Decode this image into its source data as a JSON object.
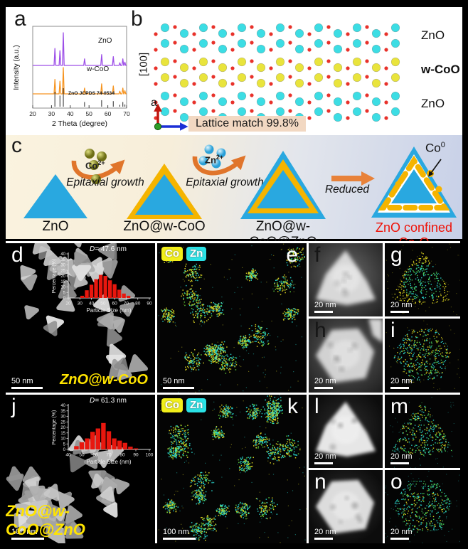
{
  "panels": {
    "a": {
      "letter": "a"
    },
    "b": {
      "letter": "b"
    },
    "c": {
      "letter": "c"
    },
    "d": {
      "letter": "d",
      "scale_bar": "50 nm",
      "sample_label": "ZnO@w-CoO"
    },
    "e": {
      "letter": "e",
      "scale_bar": "50 nm"
    },
    "f": {
      "letter": "f",
      "scale_bar": "20 nm"
    },
    "g": {
      "letter": "g",
      "scale_bar": "20 nm"
    },
    "h": {
      "letter": "h",
      "scale_bar": "20 nm"
    },
    "i": {
      "letter": "i",
      "scale_bar": "20 nm"
    },
    "j": {
      "letter": "j",
      "scale_bar": "100 nm",
      "sample_label": "ZnO@w-CoO@ZnO"
    },
    "k": {
      "letter": "k",
      "scale_bar": "100 nm"
    },
    "l": {
      "letter": "l",
      "scale_bar": "20 nm"
    },
    "m": {
      "letter": "m",
      "scale_bar": "20 nm"
    },
    "n": {
      "letter": "n",
      "scale_bar": "20 nm"
    },
    "o": {
      "letter": "o",
      "scale_bar": "20 nm"
    }
  },
  "eds_legend": {
    "co_label": "Co",
    "zn_label": "Zn",
    "co_color": "#f2ef1a",
    "zn_color": "#2ae2e6"
  },
  "panel_b": {
    "direction_label": "[100]",
    "axis_a": "a",
    "axis_c": "c",
    "layers": [
      "ZnO",
      "w-CoO",
      "ZnO"
    ],
    "caption": "Lattice match 99.8%",
    "atom_colors": {
      "zn": "#3cdde4",
      "co": "#e9e43c",
      "o": "#e8312a"
    }
  },
  "panel_c": {
    "steps": [
      {
        "label": "ZnO"
      },
      {
        "label": "ZnO@w-CoO"
      },
      {
        "label": "ZnO@w-CoO@ZnO"
      },
      {
        "label_prefix": "ZnO confined Co",
        "label_sub": "x",
        "label_suffix": "O"
      }
    ],
    "step1_arrow": {
      "ion": "Co",
      "ion_charge": "2+",
      "caption": "Epitaxial growth"
    },
    "step2_arrow": {
      "ion": "Zn",
      "ion_charge": "2+",
      "caption": "Epitaxial growth"
    },
    "step3_arrow": {
      "caption": "Reduced"
    },
    "co0": {
      "base": "Co",
      "sup": "0"
    },
    "colors": {
      "zno_blue": "#29a8e0",
      "coo_yellow": "#f5b400",
      "arrow_orange": "#e0752b",
      "final_label_red": "#ee1208"
    }
  },
  "chart_data": [
    {
      "type": "line",
      "panel": "a",
      "xlabel": "2 Theta (degree)",
      "ylabel": "Intensity (a.u.)",
      "xlim": [
        20,
        70
      ],
      "x_ticks": [
        20,
        30,
        40,
        50,
        60,
        70
      ],
      "series": [
        {
          "name": "ZnO",
          "color": "#9d4fe8",
          "peaks": [
            [
              31.8,
              0.52
            ],
            [
              34.5,
              0.45
            ],
            [
              36.3,
              1.0
            ],
            [
              47.6,
              0.2
            ],
            [
              56.7,
              0.33
            ],
            [
              62.9,
              0.27
            ],
            [
              66.4,
              0.08
            ],
            [
              68.0,
              0.2
            ],
            [
              69.1,
              0.1
            ]
          ]
        },
        {
          "name": "w-CoO",
          "color": "#f69420",
          "peaks": [
            [
              31.8,
              0.55
            ],
            [
              34.5,
              0.48
            ],
            [
              36.3,
              1.0
            ],
            [
              47.6,
              0.22
            ],
            [
              56.7,
              0.38
            ],
            [
              62.9,
              0.3
            ],
            [
              66.4,
              0.1
            ],
            [
              68.0,
              0.22
            ],
            [
              69.1,
              0.12
            ]
          ]
        }
      ],
      "reference": {
        "name": "ZnO JCPDS 74-0534",
        "color": "#2a2a2a",
        "peaks": [
          [
            31.8,
            0.8
          ],
          [
            34.5,
            0.6
          ],
          [
            36.3,
            1.0
          ],
          [
            47.6,
            0.25
          ],
          [
            56.7,
            0.35
          ],
          [
            62.9,
            0.3
          ],
          [
            66.4,
            0.1
          ],
          [
            68.0,
            0.25
          ],
          [
            69.1,
            0.12
          ]
        ]
      }
    },
    {
      "type": "bar",
      "panel": "d",
      "title_d": "D=",
      "title_value": "47.6 nm",
      "xlabel": "Particle Size (nm)",
      "ylabel": "Percentage (%)",
      "xlim": [
        20,
        90
      ],
      "ylim": [
        0,
        40
      ],
      "x_ticks": [
        20,
        30,
        40,
        50,
        60,
        70,
        80,
        90
      ],
      "y_ticks": [
        0,
        5,
        10,
        15,
        20,
        25,
        30,
        35,
        40
      ],
      "bin_start": 30,
      "bin_width": 4,
      "values": [
        2,
        7,
        12,
        17,
        21,
        20,
        16,
        12.5,
        7.5,
        4,
        2
      ],
      "bar_color": "#e8170e"
    },
    {
      "type": "bar",
      "panel": "j",
      "title_d": "D=",
      "title_value": "61.3 nm",
      "xlabel": "Particle Size (nm)",
      "ylabel": "Percentage (%)",
      "xlim": [
        40,
        100
      ],
      "ylim": [
        0,
        40
      ],
      "x_ticks": [
        40,
        50,
        60,
        70,
        80,
        90,
        100
      ],
      "y_ticks": [
        0,
        5,
        10,
        15,
        20,
        25,
        30,
        35,
        40
      ],
      "bin_start": 44,
      "bin_width": 4,
      "values": [
        3,
        6.5,
        10,
        16,
        19,
        24,
        16.5,
        10,
        8,
        6,
        2.5,
        1
      ],
      "bar_color": "#e8170e"
    }
  ]
}
